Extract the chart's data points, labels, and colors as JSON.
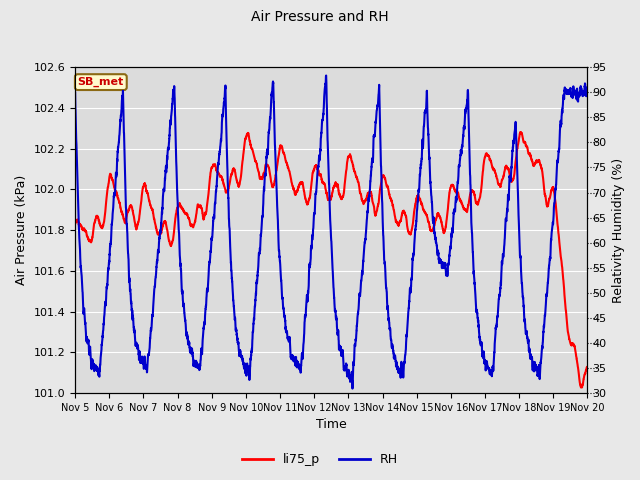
{
  "title": "Air Pressure and RH",
  "xlabel": "Time",
  "ylabel_left": "Air Pressure (kPa)",
  "ylabel_right": "Relativity Humidity (%)",
  "legend_label_red": "li75_p",
  "legend_label_blue": "RH",
  "annotation_text": "SB_met",
  "annotation_color": "#CC0000",
  "annotation_bg": "#FFFACD",
  "annotation_border": "#8B6914",
  "ylim_left": [
    101.0,
    102.6
  ],
  "ylim_right": [
    30,
    95
  ],
  "yticks_left": [
    101.0,
    101.2,
    101.4,
    101.6,
    101.8,
    102.0,
    102.2,
    102.4,
    102.6
  ],
  "yticks_right": [
    30,
    35,
    40,
    45,
    50,
    55,
    60,
    65,
    70,
    75,
    80,
    85,
    90,
    95
  ],
  "x_tick_labels": [
    "Nov 5",
    "Nov 6",
    "Nov 7",
    "Nov 8",
    "Nov 9",
    "Nov 10",
    "Nov 11",
    "Nov 12",
    "Nov 13",
    "Nov 14",
    "Nov 15",
    "Nov 16",
    "Nov 17",
    "Nov 18",
    "Nov 19",
    "Nov 20"
  ],
  "color_red": "#FF0000",
  "color_blue": "#0000CC",
  "line_width": 1.5,
  "fig_bg_color": "#E8E8E8",
  "plot_bg_color": "#DCDCDC",
  "grid_color": "#FFFFFF",
  "n_days": 15,
  "pts_per_day": 288
}
